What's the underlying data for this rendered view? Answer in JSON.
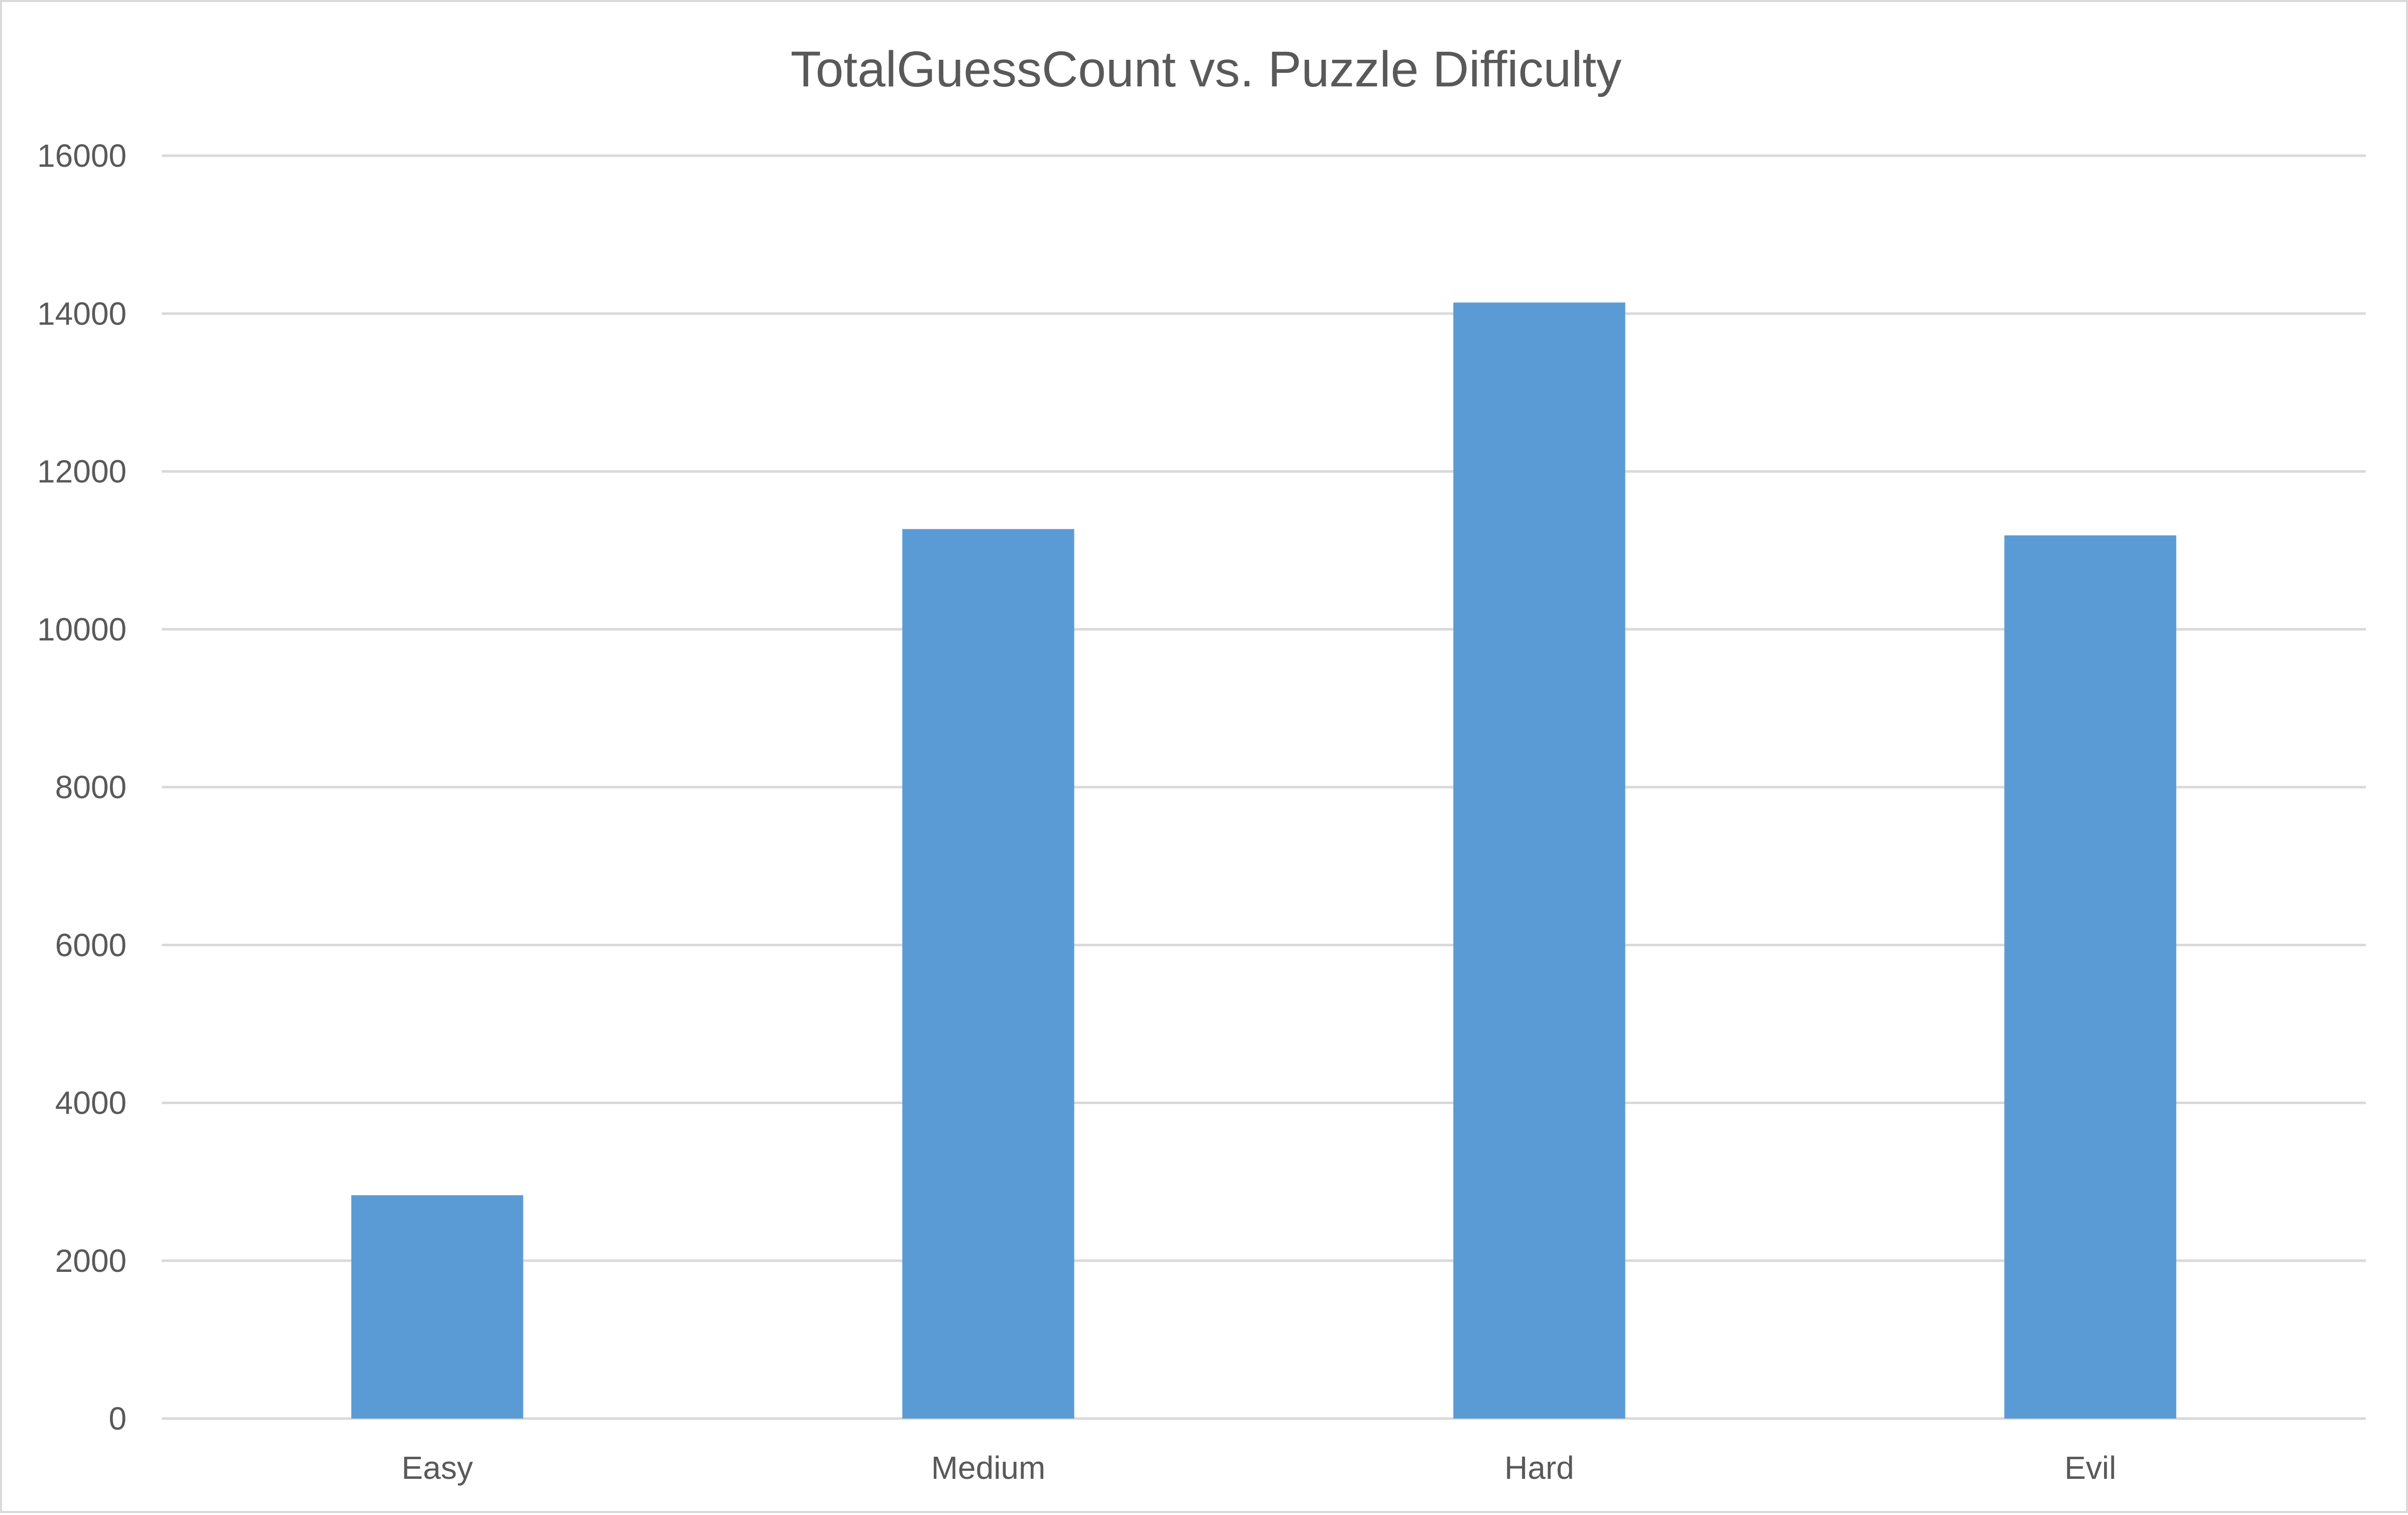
{
  "chart_data": {
    "type": "bar",
    "title": "TotalGuessCount vs. Puzzle Difficulty",
    "xlabel": "",
    "ylabel": "",
    "categories": [
      "Easy",
      "Medium",
      "Hard",
      "Evil"
    ],
    "values": [
      2830,
      11270,
      14140,
      11190
    ],
    "ylim": [
      0,
      16000
    ],
    "yticks": [
      0,
      2000,
      4000,
      6000,
      8000,
      10000,
      12000,
      14000,
      16000
    ],
    "grid": true,
    "legend": "none",
    "colors": {
      "bar": "#5b9bd5",
      "grid": "#d9d9d9",
      "text": "#595959"
    }
  }
}
